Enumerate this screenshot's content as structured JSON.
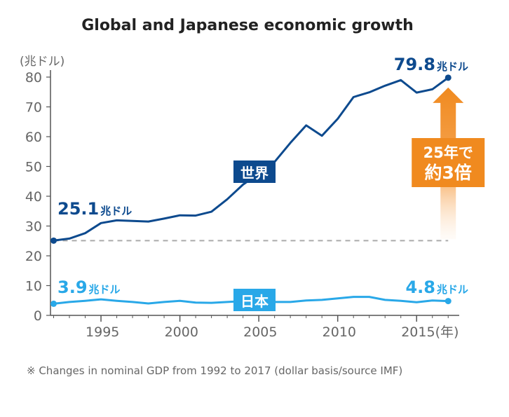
{
  "chart_data": {
    "type": "line",
    "title": "Global and Japanese economic growth",
    "ylabel": "(兆ドル)",
    "xlabel": "",
    "ylim": [
      0,
      80
    ],
    "xlim": [
      1991.8,
      2017.7
    ],
    "yticks": [
      0,
      10,
      20,
      30,
      40,
      50,
      60,
      70,
      80
    ],
    "xticks": [
      {
        "value": 1995,
        "label": "1995"
      },
      {
        "value": 2000,
        "label": "2000"
      },
      {
        "value": 2005,
        "label": "2005"
      },
      {
        "value": 2010,
        "label": "2010"
      },
      {
        "value": 2015,
        "label": "2015(年)"
      }
    ],
    "grid": false,
    "series": [
      {
        "name": "世界",
        "color": "#0d4a8e",
        "x": [
          1992,
          1993,
          1994,
          1995,
          1996,
          1997,
          1998,
          1999,
          2000,
          2001,
          2002,
          2003,
          2004,
          2005,
          2006,
          2007,
          2008,
          2009,
          2010,
          2011,
          2012,
          2013,
          2014,
          2015,
          2016,
          2017
        ],
        "values": [
          25.1,
          25.8,
          27.6,
          31.0,
          31.9,
          31.7,
          31.5,
          32.5,
          33.6,
          33.5,
          34.8,
          39.0,
          43.9,
          47.6,
          51.5,
          57.9,
          63.8,
          60.3,
          66.0,
          73.3,
          74.9,
          77.1,
          79.0,
          74.8,
          75.9,
          79.8
        ]
      },
      {
        "name": "日本",
        "color": "#29a8e8",
        "x": [
          1992,
          1993,
          1994,
          1995,
          1996,
          1997,
          1998,
          1999,
          2000,
          2001,
          2002,
          2003,
          2004,
          2005,
          2006,
          2007,
          2008,
          2009,
          2010,
          2011,
          2012,
          2013,
          2014,
          2015,
          2016,
          2017
        ],
        "values": [
          3.9,
          4.5,
          4.9,
          5.4,
          4.9,
          4.5,
          4.0,
          4.5,
          4.9,
          4.3,
          4.2,
          4.5,
          4.8,
          4.8,
          4.5,
          4.5,
          5.0,
          5.2,
          5.7,
          6.2,
          6.2,
          5.2,
          4.9,
          4.4,
          5.0,
          4.8
        ]
      }
    ],
    "dashed_reference": {
      "value": 25.1,
      "from": 1992,
      "to": 2017
    },
    "annotations": {
      "world_start_value": "25.1",
      "world_end_value": "79.8",
      "japan_start_value": "3.9",
      "japan_end_value": "4.8",
      "unit": "兆ドル",
      "world_series_label": "世界",
      "japan_series_label": "日本",
      "growth_line1": "25年で",
      "growth_line2": "約3倍"
    },
    "colors": {
      "world": "#0d4a8e",
      "japan": "#29a8e8",
      "arrow": "#f08a1f",
      "axis": "#555555",
      "tick_text": "#666666"
    },
    "footnote": "※ Changes in nominal GDP from 1992 to 2017 (dollar basis/source IMF)"
  }
}
